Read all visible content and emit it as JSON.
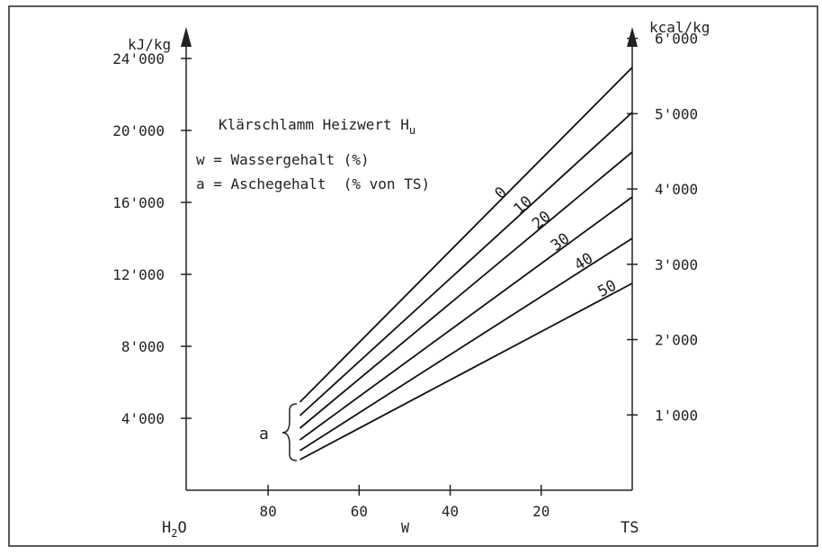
{
  "chart_data": {
    "type": "line",
    "title": "Klärschlamm Heizwert H",
    "title_subscript": "u",
    "legend_lines": [
      "w = Wassergehalt (%)",
      "a = Aschegehalt  (% von TS)"
    ],
    "y_left_unit": "kJ/kg",
    "y_right_unit": "kcal/kg",
    "y_left_ticks": [
      {
        "value": 4000,
        "label": "4'000"
      },
      {
        "value": 8000,
        "label": "8'000"
      },
      {
        "value": 12000,
        "label": "12'000"
      },
      {
        "value": 16000,
        "label": "16'000"
      },
      {
        "value": 20000,
        "label": "20'000"
      },
      {
        "value": 24000,
        "label": "24'000"
      }
    ],
    "y_right_ticks": [
      {
        "value": 1000,
        "label": "1'000"
      },
      {
        "value": 2000,
        "label": "2'000"
      },
      {
        "value": 3000,
        "label": "3'000"
      },
      {
        "value": 4000,
        "label": "4'000"
      },
      {
        "value": 5000,
        "label": "5'000"
      },
      {
        "value": 6000,
        "label": "6'000"
      }
    ],
    "x_ticks": [
      {
        "value": 80,
        "label": "80"
      },
      {
        "value": 60,
        "label": "60"
      },
      {
        "value": 40,
        "label": "40"
      },
      {
        "value": 20,
        "label": "20"
      }
    ],
    "x_left_label": "H",
    "x_left_label_sub": "2",
    "x_left_label_tail": "O",
    "x_axis_label": "W",
    "x_right_label": "TS",
    "xlim": [
      98,
      0
    ],
    "ylim": [
      0,
      24000
    ],
    "y_right_lim": [
      0,
      5733
    ],
    "bracket_label": "a",
    "series": [
      {
        "name": "0",
        "x": [
          73,
          0
        ],
        "y": [
          4900,
          23500
        ]
      },
      {
        "name": "10",
        "x": [
          73,
          0
        ],
        "y": [
          4150,
          21000
        ]
      },
      {
        "name": "20",
        "x": [
          73,
          0
        ],
        "y": [
          3450,
          18800
        ]
      },
      {
        "name": "30",
        "x": [
          73,
          0
        ],
        "y": [
          2800,
          16300
        ]
      },
      {
        "name": "40",
        "x": [
          73,
          0
        ],
        "y": [
          2200,
          14000
        ]
      },
      {
        "name": "50",
        "x": [
          73,
          0
        ],
        "y": [
          1700,
          11500
        ]
      }
    ]
  }
}
